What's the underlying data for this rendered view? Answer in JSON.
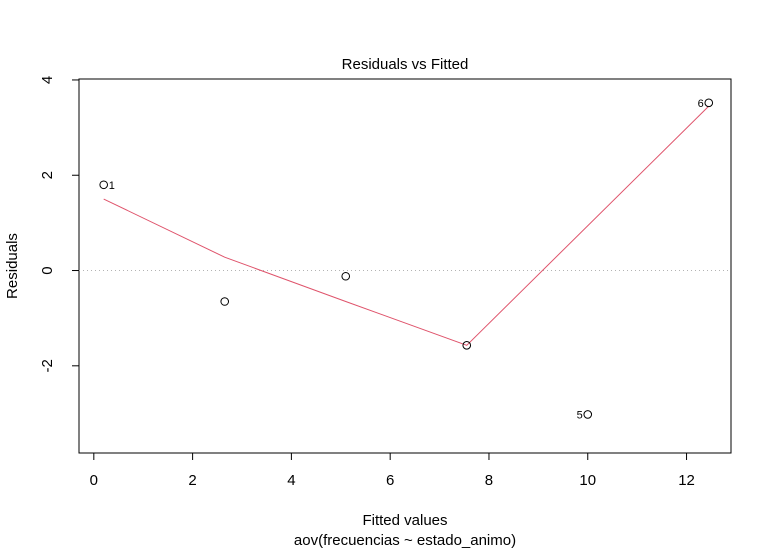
{
  "chart_data": {
    "type": "scatter",
    "title": "Residuals vs Fitted",
    "xlabel": "Fitted values",
    "subtitle": "aov(frecuencias ~ estado_animo)",
    "ylabel": "Residuals",
    "xlim": [
      -0.3,
      12.9
    ],
    "ylim": [
      -3.83,
      4.02
    ],
    "xticks": [
      0,
      2,
      4,
      6,
      8,
      10,
      12
    ],
    "xtick_labels": [
      "0",
      "2",
      "4",
      "6",
      "8",
      "10",
      "12"
    ],
    "yticks": [
      -2,
      0,
      2,
      4
    ],
    "ytick_labels": [
      "-2",
      "0",
      "2",
      "4"
    ],
    "points": [
      {
        "x": 0.2,
        "y": 1.8,
        "label": "1"
      },
      {
        "x": 2.65,
        "y": -0.65,
        "label": ""
      },
      {
        "x": 5.1,
        "y": -0.12,
        "label": ""
      },
      {
        "x": 7.55,
        "y": -1.57,
        "label": ""
      },
      {
        "x": 10.0,
        "y": -3.02,
        "label": "5"
      },
      {
        "x": 12.45,
        "y": 3.52,
        "label": "6"
      }
    ],
    "smooth_line": {
      "x": [
        0.2,
        2.65,
        5.1,
        7.55,
        12.45
      ],
      "y": [
        1.5,
        0.28,
        -0.65,
        -1.57,
        3.45
      ]
    },
    "reference_line_y": 0,
    "colors": {
      "smooth": "#df536b",
      "reference": "#b3b3b3",
      "points": "#000000"
    }
  }
}
